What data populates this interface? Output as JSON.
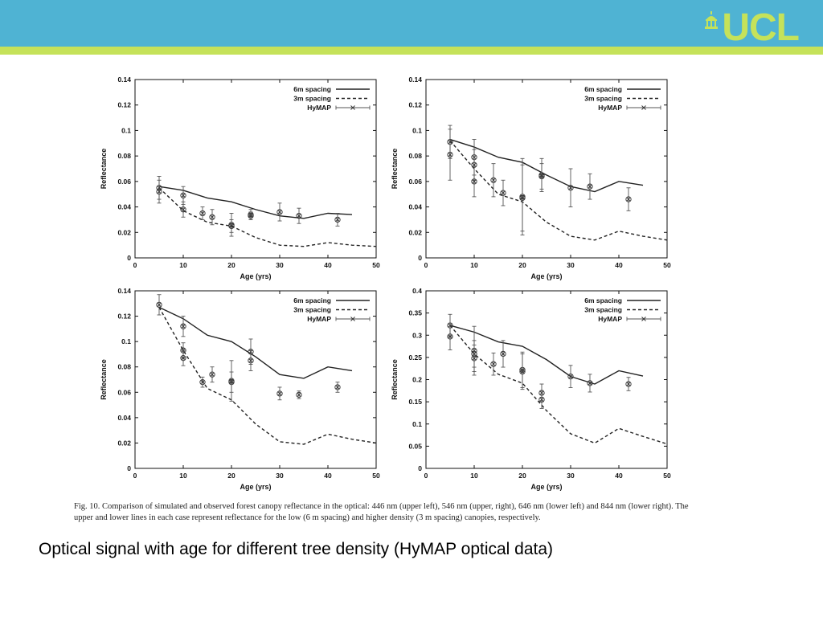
{
  "slide": {
    "logo_text": "UCL",
    "caption": "Fig. 10. Comparison of simulated and observed forest canopy reflectance in the optical: 446 nm (upper left), 546 nm (upper, right), 646 nm (lower left) and 844 nm (lower right). The upper and lower lines in each case represent reflectance for the low (6 m spacing) and higher density (3 m spacing) canopies, respectively.",
    "title_text": "Optical signal with age for different tree density (HyMAP optical data)",
    "colors": {
      "header": "#4fb3d3",
      "stripe": "#c5e25a",
      "logo": "#c5e25a"
    }
  },
  "chart_data": [
    {
      "type": "line",
      "xlabel": "Age (yrs)",
      "ylabel": "Reflectance",
      "xlim": [
        0,
        50
      ],
      "ylim": [
        0,
        0.14
      ],
      "xticks": [
        "0",
        "10",
        "20",
        "30",
        "40",
        "50"
      ],
      "yticks": [
        "0",
        "0.02",
        "0.04",
        "0.06",
        "0.08",
        "0.1",
        "0.12",
        "0.14"
      ],
      "legend": [
        "6m spacing",
        "3m spacing",
        "HyMAP"
      ],
      "legend_position": "top-right",
      "series": [
        {
          "name": "6m spacing",
          "style": "solid",
          "x": [
            5,
            10,
            15,
            20,
            25,
            30,
            35,
            40,
            45
          ],
          "y": [
            0.056,
            0.053,
            0.047,
            0.044,
            0.038,
            0.033,
            0.031,
            0.035,
            0.034
          ]
        },
        {
          "name": "3m spacing",
          "style": "dashed",
          "x": [
            5,
            10,
            15,
            20,
            25,
            30,
            35,
            40,
            45,
            50
          ],
          "y": [
            0.055,
            0.037,
            0.028,
            0.025,
            0.016,
            0.01,
            0.009,
            0.012,
            0.01,
            0.009
          ]
        },
        {
          "name": "HyMAP",
          "style": "markers",
          "points": [
            {
              "x": 5,
              "y": 0.055,
              "err": 0.009
            },
            {
              "x": 5,
              "y": 0.052,
              "err": 0.009
            },
            {
              "x": 10,
              "y": 0.049,
              "err": 0.007
            },
            {
              "x": 10,
              "y": 0.038,
              "err": 0.006
            },
            {
              "x": 14,
              "y": 0.035,
              "err": 0.005
            },
            {
              "x": 16,
              "y": 0.032,
              "err": 0.006
            },
            {
              "x": 20,
              "y": 0.026,
              "err": 0.009
            },
            {
              "x": 20,
              "y": 0.025,
              "err": 0.005
            },
            {
              "x": 24,
              "y": 0.034,
              "err": 0.004
            },
            {
              "x": 24,
              "y": 0.033,
              "err": 0.003
            },
            {
              "x": 30,
              "y": 0.036,
              "err": 0.007
            },
            {
              "x": 34,
              "y": 0.033,
              "err": 0.006
            },
            {
              "x": 42,
              "y": 0.03,
              "err": 0.005
            }
          ]
        }
      ]
    },
    {
      "type": "line",
      "xlabel": "Age (yrs)",
      "ylabel": "Reflectance",
      "xlim": [
        0,
        50
      ],
      "ylim": [
        0,
        0.14
      ],
      "xticks": [
        "0",
        "10",
        "20",
        "30",
        "40",
        "50"
      ],
      "yticks": [
        "0",
        "0.02",
        "0.04",
        "0.06",
        "0.08",
        "0.1",
        "0.12",
        "0.14"
      ],
      "legend": [
        "6m spacing",
        "3m spacing",
        "HyMAP"
      ],
      "legend_position": "top-right",
      "series": [
        {
          "name": "6m spacing",
          "style": "solid",
          "x": [
            5,
            10,
            15,
            20,
            25,
            30,
            35,
            40,
            45
          ],
          "y": [
            0.093,
            0.087,
            0.079,
            0.075,
            0.065,
            0.056,
            0.052,
            0.06,
            0.057
          ]
        },
        {
          "name": "3m spacing",
          "style": "dashed",
          "x": [
            5,
            10,
            15,
            20,
            25,
            30,
            35,
            40,
            45,
            50
          ],
          "y": [
            0.092,
            0.07,
            0.05,
            0.044,
            0.028,
            0.017,
            0.014,
            0.021,
            0.017,
            0.014
          ]
        },
        {
          "name": "HyMAP",
          "style": "markers",
          "points": [
            {
              "x": 5,
              "y": 0.091,
              "err": 0.013
            },
            {
              "x": 5,
              "y": 0.081,
              "err": 0.02
            },
            {
              "x": 10,
              "y": 0.079,
              "err": 0.014
            },
            {
              "x": 10,
              "y": 0.073,
              "err": 0.012
            },
            {
              "x": 10,
              "y": 0.06,
              "err": 0.012
            },
            {
              "x": 14,
              "y": 0.061,
              "err": 0.013
            },
            {
              "x": 16,
              "y": 0.051,
              "err": 0.01
            },
            {
              "x": 20,
              "y": 0.048,
              "err": 0.03
            },
            {
              "x": 20,
              "y": 0.047,
              "err": 0.026
            },
            {
              "x": 24,
              "y": 0.065,
              "err": 0.013
            },
            {
              "x": 24,
              "y": 0.064,
              "err": 0.01
            },
            {
              "x": 30,
              "y": 0.055,
              "err": 0.015
            },
            {
              "x": 34,
              "y": 0.056,
              "err": 0.01
            },
            {
              "x": 42,
              "y": 0.046,
              "err": 0.009
            }
          ]
        }
      ]
    },
    {
      "type": "line",
      "xlabel": "Age (yrs)",
      "ylabel": "Reflectance",
      "xlim": [
        0,
        50
      ],
      "ylim": [
        0,
        0.14
      ],
      "xticks": [
        "0",
        "10",
        "20",
        "30",
        "40",
        "50"
      ],
      "yticks": [
        "0",
        "0.02",
        "0.04",
        "0.06",
        "0.08",
        "0.1",
        "0.12",
        "0.14"
      ],
      "legend": [
        "6m spacing",
        "3m spacing",
        "HyMAP"
      ],
      "legend_position": "top-right",
      "series": [
        {
          "name": "6m spacing",
          "style": "solid",
          "x": [
            5,
            10,
            15,
            20,
            25,
            30,
            35,
            40,
            45
          ],
          "y": [
            0.127,
            0.118,
            0.105,
            0.1,
            0.088,
            0.074,
            0.071,
            0.08,
            0.077
          ]
        },
        {
          "name": "3m spacing",
          "style": "dashed",
          "x": [
            5,
            10,
            15,
            20,
            25,
            30,
            35,
            40,
            45,
            50
          ],
          "y": [
            0.127,
            0.093,
            0.063,
            0.054,
            0.035,
            0.021,
            0.019,
            0.027,
            0.023,
            0.02
          ]
        },
        {
          "name": "HyMAP",
          "style": "markers",
          "points": [
            {
              "x": 5,
              "y": 0.129,
              "err": 0.008
            },
            {
              "x": 10,
              "y": 0.112,
              "err": 0.008
            },
            {
              "x": 10,
              "y": 0.093,
              "err": 0.006
            },
            {
              "x": 10,
              "y": 0.087,
              "err": 0.006
            },
            {
              "x": 14,
              "y": 0.068,
              "err": 0.004
            },
            {
              "x": 16,
              "y": 0.074,
              "err": 0.006
            },
            {
              "x": 20,
              "y": 0.069,
              "err": 0.016
            },
            {
              "x": 20,
              "y": 0.068,
              "err": 0.008
            },
            {
              "x": 24,
              "y": 0.092,
              "err": 0.01
            },
            {
              "x": 24,
              "y": 0.085,
              "err": 0.008
            },
            {
              "x": 30,
              "y": 0.059,
              "err": 0.005
            },
            {
              "x": 34,
              "y": 0.058,
              "err": 0.003
            },
            {
              "x": 42,
              "y": 0.064,
              "err": 0.004
            }
          ]
        }
      ]
    },
    {
      "type": "line",
      "xlabel": "Age (yrs)",
      "ylabel": "Reflectance",
      "xlim": [
        0,
        50
      ],
      "ylim": [
        0,
        0.4
      ],
      "xticks": [
        "0",
        "10",
        "20",
        "30",
        "40",
        "50"
      ],
      "yticks": [
        "0",
        "0.05",
        "0.1",
        "0.15",
        "0.2",
        "0.25",
        "0.3",
        "0.35",
        "0.4"
      ],
      "legend": [
        "6m spacing",
        "3m spacing",
        "HyMAP"
      ],
      "legend_position": "top-right",
      "series": [
        {
          "name": "6m spacing",
          "style": "solid",
          "x": [
            5,
            10,
            15,
            20,
            25,
            30,
            35,
            40,
            45
          ],
          "y": [
            0.322,
            0.307,
            0.285,
            0.275,
            0.245,
            0.207,
            0.19,
            0.22,
            0.208
          ]
        },
        {
          "name": "3m spacing",
          "style": "dashed",
          "x": [
            5,
            10,
            15,
            20,
            25,
            30,
            35,
            40,
            45,
            50
          ],
          "y": [
            0.322,
            0.258,
            0.212,
            0.192,
            0.13,
            0.078,
            0.057,
            0.09,
            0.072,
            0.055
          ]
        },
        {
          "name": "HyMAP",
          "style": "markers",
          "points": [
            {
              "x": 5,
              "y": 0.322,
              "err": 0.025
            },
            {
              "x": 5,
              "y": 0.297,
              "err": 0.03
            },
            {
              "x": 10,
              "y": 0.265,
              "err": 0.055
            },
            {
              "x": 10,
              "y": 0.258,
              "err": 0.03
            },
            {
              "x": 10,
              "y": 0.248,
              "err": 0.03
            },
            {
              "x": 14,
              "y": 0.235,
              "err": 0.025
            },
            {
              "x": 16,
              "y": 0.258,
              "err": 0.03
            },
            {
              "x": 20,
              "y": 0.222,
              "err": 0.04
            },
            {
              "x": 20,
              "y": 0.218,
              "err": 0.04
            },
            {
              "x": 24,
              "y": 0.17,
              "err": 0.02
            },
            {
              "x": 24,
              "y": 0.155,
              "err": 0.02
            },
            {
              "x": 30,
              "y": 0.207,
              "err": 0.025
            },
            {
              "x": 34,
              "y": 0.192,
              "err": 0.02
            },
            {
              "x": 42,
              "y": 0.19,
              "err": 0.015
            }
          ]
        }
      ]
    }
  ]
}
